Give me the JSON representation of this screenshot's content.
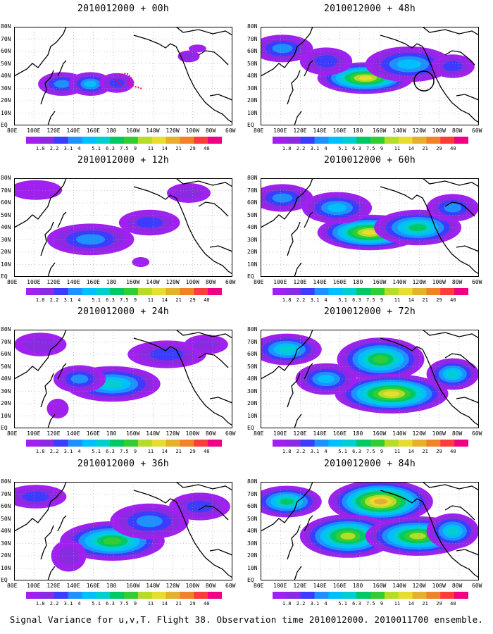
{
  "lat_labels": [
    "80N",
    "70N",
    "60N",
    "50N",
    "40N",
    "30N",
    "20N",
    "10N",
    "EQ"
  ],
  "lon_labels": [
    "80E",
    "100E",
    "120E",
    "140E",
    "160E",
    "180",
    "160W",
    "140W",
    "120W",
    "100W",
    "80W",
    "60W"
  ],
  "colorbar": {
    "labels": [
      "1.8",
      "2.2",
      "3.1",
      "4",
      "5.1",
      "6.3",
      "7.5",
      "9",
      "11",
      "14",
      "21",
      "29",
      "40"
    ],
    "colors": [
      "#a020f0",
      "#8a2be2",
      "#3c3cff",
      "#1e90ff",
      "#00bfff",
      "#00ced1",
      "#00c864",
      "#32cd32",
      "#b4dc28",
      "#e6dc32",
      "#e6af2d",
      "#f08228",
      "#fa3c3c",
      "#f00082"
    ],
    "unit_note": "color index 0-14"
  },
  "panels": [
    {
      "id": "p00",
      "title": "2010012000 + 00h",
      "lead": 0,
      "col": 0,
      "row": 0,
      "flight_track": true,
      "circle": false
    },
    {
      "id": "p12",
      "title": "2010012000 + 12h",
      "lead": 12,
      "col": 0,
      "row": 1,
      "flight_track": false,
      "circle": false
    },
    {
      "id": "p24",
      "title": "2010012000 + 24h",
      "lead": 24,
      "col": 0,
      "row": 2,
      "flight_track": false,
      "circle": false
    },
    {
      "id": "p36",
      "title": "2010012000 + 36h",
      "lead": 36,
      "col": 0,
      "row": 3,
      "flight_track": false,
      "circle": false
    },
    {
      "id": "p48",
      "title": "2010012000 + 48h",
      "lead": 48,
      "col": 1,
      "row": 0,
      "flight_track": false,
      "circle": true
    },
    {
      "id": "p60",
      "title": "2010012000 + 60h",
      "lead": 60,
      "col": 1,
      "row": 1,
      "flight_track": false,
      "circle": false
    },
    {
      "id": "p72",
      "title": "2010012000 + 72h",
      "lead": 72,
      "col": 1,
      "row": 2,
      "flight_track": false,
      "circle": false
    },
    {
      "id": "p84",
      "title": "2010012000 + 84h",
      "lead": 84,
      "col": 1,
      "row": 3,
      "flight_track": false,
      "circle": false
    }
  ],
  "footer": "Signal Variance for u,v,T. Flight 38. Observation time 2010012000. 2010011700 ensemble."
}
